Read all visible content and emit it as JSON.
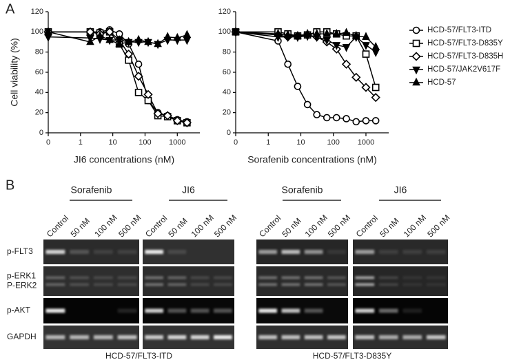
{
  "panel_labels": [
    "A",
    "B"
  ],
  "chart_data": [
    {
      "type": "line",
      "xlabel": "JI6 concentrations (nM)",
      "ylabel": "Cell viability (%)",
      "x": [
        0,
        2,
        4,
        8,
        16,
        31,
        63,
        125,
        250,
        500,
        1000,
        2000
      ],
      "xlim": [
        0,
        5000
      ],
      "xticks": [
        0,
        1,
        10,
        100,
        1000
      ],
      "log_scale": true,
      "ylim": [
        0,
        120
      ],
      "yticks": [
        0,
        20,
        40,
        60,
        80,
        100,
        120
      ],
      "series": [
        {
          "marker": "circle-open",
          "color": "#000000",
          "values": [
            100,
            100,
            100,
            102,
            98,
            88,
            68,
            32,
            20,
            17,
            13,
            11
          ]
        },
        {
          "marker": "square-open",
          "color": "#000000",
          "values": [
            100,
            100,
            99,
            100,
            88,
            72,
            40,
            32,
            17,
            16,
            12,
            10
          ]
        },
        {
          "marker": "diamond-open",
          "color": "#000000",
          "values": [
            100,
            100,
            98,
            100,
            92,
            78,
            56,
            38,
            19,
            17,
            12,
            10
          ]
        },
        {
          "marker": "triangle-down",
          "color": "#000000",
          "values": [
            95,
            94,
            93,
            92,
            92,
            90,
            90,
            90,
            88,
            92,
            92,
            92
          ]
        },
        {
          "marker": "triangle-up",
          "color": "#000000",
          "values": [
            100,
            90,
            96,
            92,
            88,
            90,
            92,
            90,
            88,
            95,
            94,
            97
          ]
        }
      ]
    },
    {
      "type": "line",
      "xlabel": "Sorafenib concentrations (nM)",
      "x": [
        0,
        2,
        4,
        8,
        16,
        31,
        63,
        125,
        250,
        500,
        1000,
        2000
      ],
      "xlim": [
        0,
        5000
      ],
      "xticks": [
        0,
        1,
        10,
        100,
        1000
      ],
      "log_scale": true,
      "ylim": [
        0,
        120
      ],
      "yticks": [
        0,
        20,
        40,
        60,
        80,
        100,
        120
      ],
      "legend": "right",
      "series": [
        {
          "name": "HCD-57/FLT3-ITD",
          "marker": "circle-open",
          "color": "#000000",
          "values": [
            100,
            91,
            68,
            46,
            28,
            18,
            15,
            15,
            14,
            11,
            12,
            12
          ]
        },
        {
          "name": "HCD-57/FLT3-D835Y",
          "marker": "square-open",
          "color": "#000000",
          "values": [
            100,
            100,
            98,
            96,
            97,
            100,
            100,
            98,
            96,
            96,
            78,
            45
          ]
        },
        {
          "name": "HCD-57/FLT3-D835H",
          "marker": "diamond-open",
          "color": "#000000",
          "values": [
            100,
            97,
            95,
            96,
            97,
            95,
            90,
            83,
            68,
            55,
            45,
            35
          ]
        },
        {
          "name": "HCD-57/JAK2V617F",
          "marker": "triangle-down",
          "color": "#000000",
          "values": [
            100,
            95,
            95,
            95,
            96,
            95,
            92,
            87,
            85,
            95,
            87,
            80
          ]
        },
        {
          "name": "HCD-57",
          "marker": "triangle-up",
          "color": "#000000",
          "values": [
            100,
            98,
            97,
            96,
            98,
            98,
            98,
            98,
            99,
            96,
            95,
            85
          ]
        }
      ]
    }
  ],
  "blot": {
    "panels": [
      {
        "treatment": "Sorafenib",
        "lanes": [
          "Control",
          "50 nM",
          "100 nM",
          "500 nM"
        ]
      },
      {
        "treatment": "JI6",
        "lanes": [
          "Control",
          "50 nM",
          "100 nM",
          "500 nM"
        ]
      },
      {
        "treatment": "Sorafenib",
        "lanes": [
          "Control",
          "50 nM",
          "100 nM",
          "500 nM"
        ]
      },
      {
        "treatment": "JI6",
        "lanes": [
          "Control",
          "50 nM",
          "100 nM",
          "500 nM"
        ]
      }
    ],
    "rows": [
      {
        "labels": [
          "p-FLT3"
        ]
      },
      {
        "labels": [
          "p-ERK1",
          "P-ERK2"
        ]
      },
      {
        "labels": [
          "p-AKT"
        ]
      },
      {
        "labels": [
          "GAPDH"
        ]
      }
    ],
    "cell_lines": [
      "HCD-57/FLT3-ITD",
      "HCD-57/FLT3-D835Y"
    ]
  }
}
